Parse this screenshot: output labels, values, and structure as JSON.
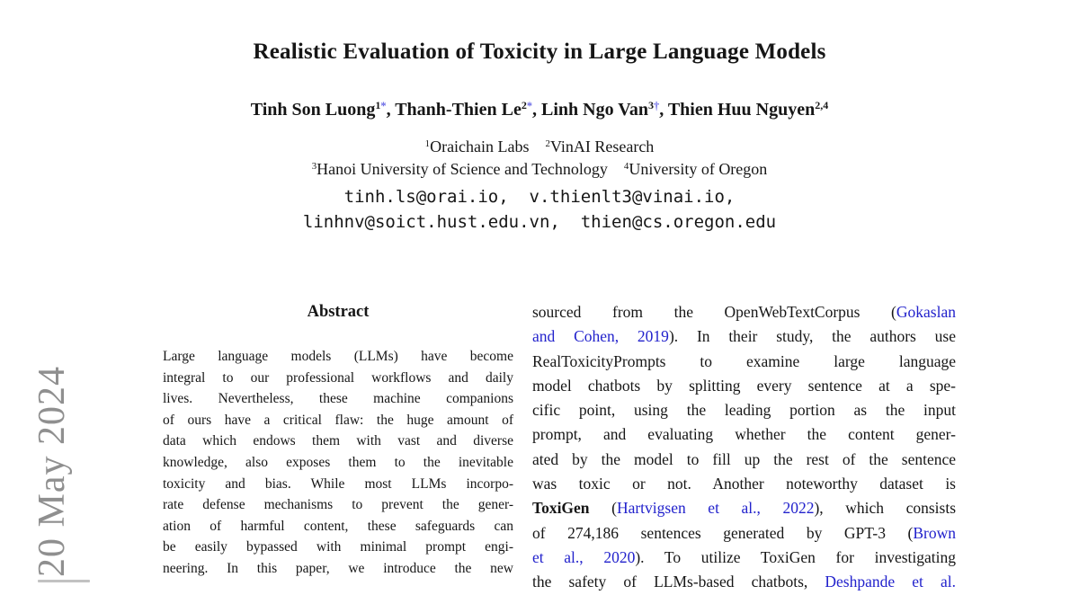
{
  "colors": {
    "link_blue": "#2222cc",
    "footnote_mark": "#6a6ae6",
    "watermark_gray": "#8f8f8f",
    "body_text": "#161616"
  },
  "watermark": {
    "text": "20 May 2024"
  },
  "header": {
    "title": "Realistic Evaluation of Toxicity in Large Language Models",
    "authors_line": [
      [
        "Tinh Son Luong",
        ""
      ],
      [
        "1",
        "sup"
      ],
      [
        "*",
        "mark"
      ],
      [
        ", ",
        ""
      ],
      [
        "Thanh-Thien Le",
        ""
      ],
      [
        "2",
        "sup"
      ],
      [
        "*",
        "mark"
      ],
      [
        ", ",
        ""
      ],
      [
        "Linh Ngo Van",
        ""
      ],
      [
        "3",
        "sup"
      ],
      [
        "†",
        "mark"
      ],
      [
        ", ",
        ""
      ],
      [
        "Thien Huu Nguyen",
        ""
      ],
      [
        "2,4",
        "sup"
      ]
    ],
    "affiliation_line1": [
      [
        "1",
        "sup"
      ],
      [
        "Oraichain Labs",
        ""
      ],
      [
        "    ",
        ""
      ],
      [
        "2",
        "sup"
      ],
      [
        "VinAI Research",
        ""
      ]
    ],
    "affiliation_line2": [
      [
        "3",
        "sup"
      ],
      [
        "Hanoi University of Science and Technology",
        ""
      ],
      [
        "    ",
        ""
      ],
      [
        "4",
        "sup"
      ],
      [
        "University of Oregon",
        ""
      ]
    ],
    "email_line1": "tinh.ls@orai.io,  v.thienlt3@vinai.io,",
    "email_line2": "linhnv@soict.hust.edu.vn,  thien@cs.oregon.edu"
  },
  "abstract": {
    "heading": "Abstract",
    "lines": [
      "Large language models (LLMs) have become",
      "integral to our professional workflows and daily",
      "lives. Nevertheless, these machine companions",
      "of ours have a critical flaw: the huge amount of",
      "data which endows them with vast and diverse",
      "knowledge, also exposes them to the inevitable",
      "toxicity and bias. While most LLMs incorpo-",
      "rate defense mechanisms to prevent the gener-",
      "ation of harmful content, these safeguards can",
      "be easily bypassed with minimal prompt engi-",
      "neering. In this paper, we introduce the new"
    ]
  },
  "right_column": {
    "lines": [
      [
        [
          "sourced from the OpenWebTextCorpus (",
          ""
        ],
        [
          "Gokaslan",
          "link"
        ]
      ],
      [
        [
          "and Cohen, 2019",
          "link"
        ],
        [
          "). In their study, the authors use",
          ""
        ]
      ],
      [
        [
          "RealToxicityPrompts to examine large language",
          ""
        ]
      ],
      [
        [
          "model chatbots by splitting every sentence at a spe-",
          ""
        ]
      ],
      [
        [
          "cific point, using the leading portion as the input",
          ""
        ]
      ],
      [
        [
          "prompt, and evaluating whether the content gener-",
          ""
        ]
      ],
      [
        [
          "ated by the model to fill up the rest of the sentence",
          ""
        ]
      ],
      [
        [
          "was toxic or not. Another noteworthy dataset is",
          ""
        ]
      ],
      [
        [
          "ToxiGen",
          "b"
        ],
        [
          " (",
          ""
        ],
        [
          "Hartvigsen et al., 2022",
          "link"
        ],
        [
          "), which consists",
          ""
        ]
      ],
      [
        [
          "of 274,186 sentences generated by GPT-3 (",
          ""
        ],
        [
          "Brown",
          "link"
        ]
      ],
      [
        [
          "et al., 2020",
          "link"
        ],
        [
          "). To utilize ToxiGen for investigating",
          ""
        ]
      ],
      [
        [
          "the safety of LLMs-based chatbots, ",
          ""
        ],
        [
          "Deshpande et al.",
          "link"
        ]
      ]
    ]
  }
}
